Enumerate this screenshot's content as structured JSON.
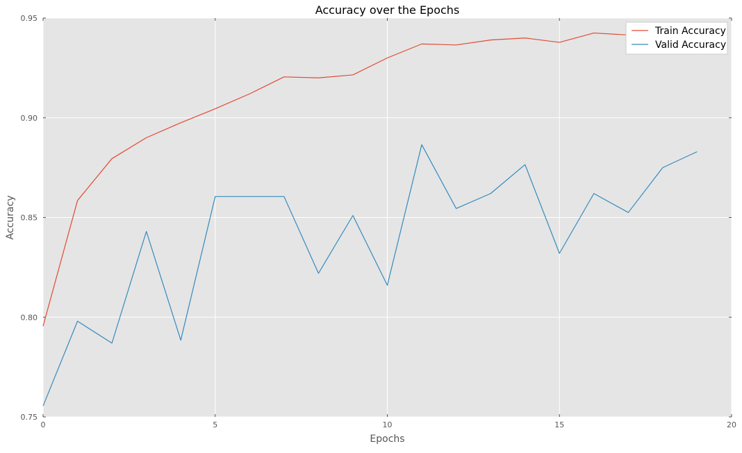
{
  "chart_data": {
    "type": "line",
    "title": "Accuracy over the Epochs",
    "xlabel": "Epochs",
    "ylabel": "Accuracy",
    "xlim": [
      0,
      20
    ],
    "ylim": [
      0.75,
      0.95
    ],
    "xticks": [
      0,
      5,
      10,
      15,
      20
    ],
    "xtick_labels": [
      "0",
      "5",
      "10",
      "15",
      "20"
    ],
    "yticks": [
      0.75,
      0.8,
      0.85,
      0.9,
      0.95
    ],
    "ytick_labels": [
      "0.75",
      "0.80",
      "0.85",
      "0.90",
      "0.95"
    ],
    "grid": true,
    "legend_position": "top-right",
    "x": [
      0,
      1,
      2,
      3,
      4,
      5,
      6,
      7,
      8,
      9,
      10,
      11,
      12,
      13,
      14,
      15,
      16,
      17,
      18,
      19
    ],
    "series": [
      {
        "name": "Train Accuracy",
        "color": "#e24a33",
        "values": [
          0.7955,
          0.8585,
          0.8795,
          0.89,
          0.8975,
          0.9045,
          0.912,
          0.9205,
          0.92,
          0.9215,
          0.93,
          0.937,
          0.9365,
          0.939,
          0.94,
          0.9378,
          0.9425,
          0.9415,
          0.943,
          0.9445
        ]
      },
      {
        "name": "Valid Accuracy",
        "color": "#348abd",
        "values": [
          0.7555,
          0.798,
          0.787,
          0.843,
          0.7885,
          0.8605,
          0.8605,
          0.8605,
          0.822,
          0.851,
          0.816,
          0.8865,
          0.8545,
          0.862,
          0.8765,
          0.832,
          0.862,
          0.8525,
          0.875,
          0.883
        ]
      }
    ]
  }
}
